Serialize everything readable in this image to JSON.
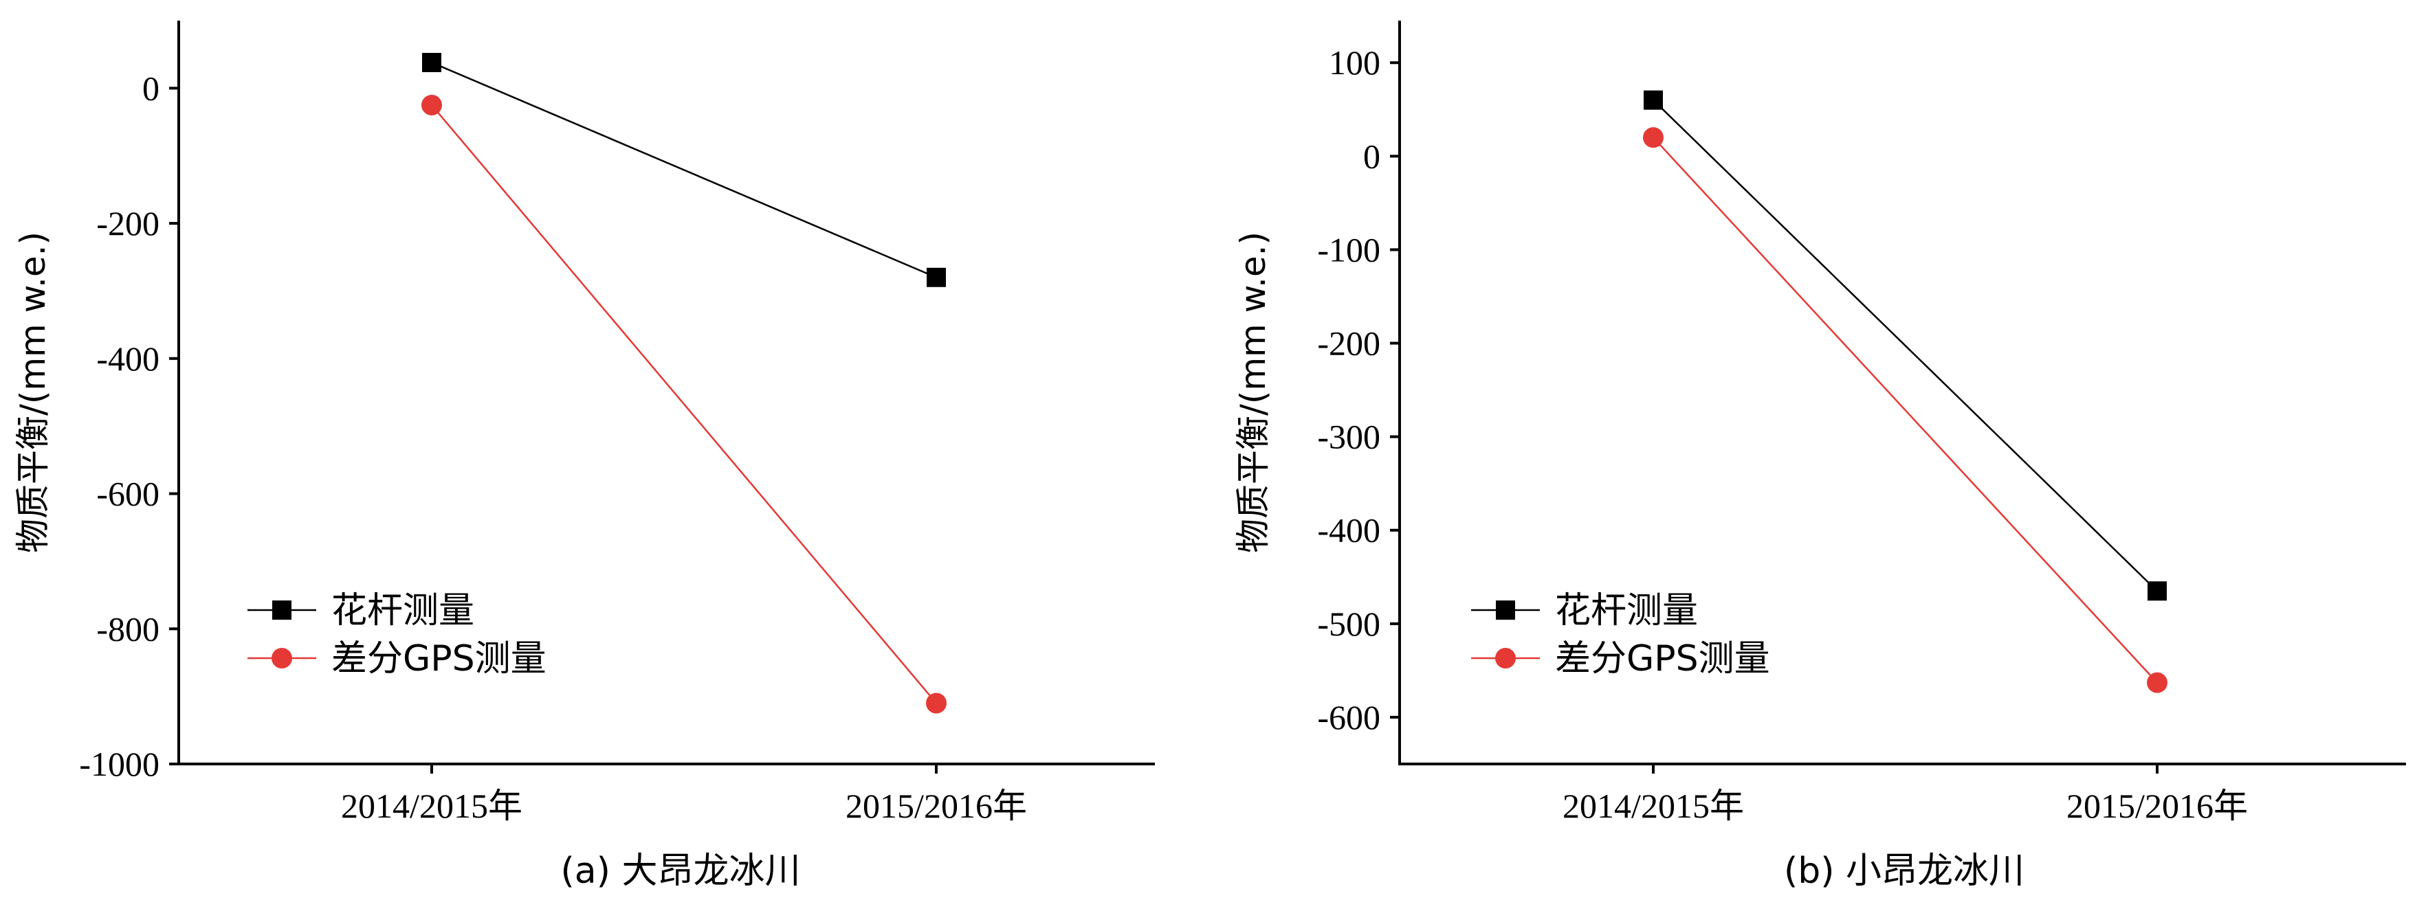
{
  "chart_data": [
    {
      "type": "line",
      "caption": "(a) 大昂龙冰川",
      "ylabel": "物质平衡/(mm w.e.)",
      "xlabel": "",
      "categories": [
        "2014/2015年",
        "2015/2016年"
      ],
      "ylim": [
        -1000,
        100
      ],
      "yticks": [
        0,
        -200,
        -400,
        -600,
        -800,
        -1000
      ],
      "ytick_labels": [
        "0",
        "-200",
        "-400",
        "-600",
        "-800",
        "-1000"
      ],
      "legend_position": "bottom-left",
      "series": [
        {
          "name": "花杆测量",
          "values": [
            38,
            -280
          ],
          "color": "#000000",
          "marker": "square"
        },
        {
          "name": "差分GPS测量",
          "values": [
            -25,
            -910
          ],
          "color": "#e53935",
          "marker": "circle"
        }
      ]
    },
    {
      "type": "line",
      "caption": "(b) 小昂龙冰川",
      "ylabel": "物质平衡/(mm w.e.)",
      "xlabel": "",
      "categories": [
        "2014/2015年",
        "2015/2016年"
      ],
      "ylim": [
        -650,
        145
      ],
      "yticks": [
        100,
        0,
        -100,
        -200,
        -300,
        -400,
        -500,
        -600
      ],
      "ytick_labels": [
        "100",
        "0",
        "-100",
        "-200",
        "-300",
        "-400",
        "-500",
        "-600"
      ],
      "legend_position": "bottom-left",
      "series": [
        {
          "name": "花杆测量",
          "values": [
            60,
            -465
          ],
          "color": "#000000",
          "marker": "square"
        },
        {
          "name": "差分GPS测量",
          "values": [
            20,
            -563
          ],
          "color": "#e53935",
          "marker": "circle"
        }
      ]
    }
  ]
}
